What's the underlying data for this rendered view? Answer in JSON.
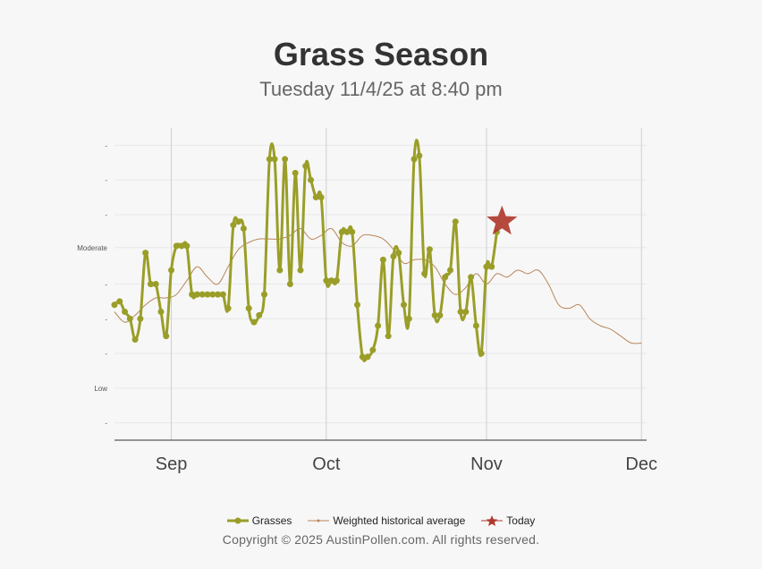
{
  "header": {
    "title": "Grass Season",
    "subtitle": "Tuesday 11/4/25 at 8:40 pm"
  },
  "footer": {
    "copyright": "Copyright © 2025 AustinPollen.com.  All rights reserved."
  },
  "colors": {
    "grasses": "#9a9e28",
    "historical": "#b8865a",
    "today": "#b03a2e",
    "grid": "#e8e8e8",
    "month_line": "#cfcfcf"
  },
  "chart_data": {
    "type": "line",
    "title": "Grass Season",
    "subtitle": "Tuesday 11/4/25 at 8:40 pm",
    "x_unit": "day",
    "x_start_date": "2025-08-20",
    "xlim": [
      0,
      103
    ],
    "ylim": [
      0,
      9
    ],
    "grid": true,
    "legend_position": "bottom",
    "x_ticks": [
      {
        "label": "Sep",
        "x": 11
      },
      {
        "label": "Oct",
        "x": 41
      },
      {
        "label": "Nov",
        "x": 72
      },
      {
        "label": "Dec",
        "x": 102
      }
    ],
    "y_ticks": [
      {
        "label": "-",
        "y": 8.5
      },
      {
        "label": "-",
        "y": 7.5
      },
      {
        "label": "-",
        "y": 6.5
      },
      {
        "label": "Moderate",
        "y": 5.55
      },
      {
        "label": "-",
        "y": 4.5
      },
      {
        "label": "-",
        "y": 3.5
      },
      {
        "label": "-",
        "y": 2.5
      },
      {
        "label": "Low",
        "y": 1.5
      },
      {
        "label": "-",
        "y": 0.5
      }
    ],
    "series": [
      {
        "name": "Grasses",
        "x": [
          0,
          1,
          2,
          3,
          4,
          5,
          6,
          7,
          8,
          9,
          10,
          11,
          12,
          13,
          14,
          15,
          16,
          17,
          18,
          19,
          20,
          21,
          22,
          23,
          24,
          25,
          26,
          27,
          28,
          29,
          30,
          31,
          32,
          33,
          34,
          35,
          36,
          37,
          38,
          39,
          40,
          41,
          42,
          43,
          44,
          45,
          46,
          47,
          48,
          49,
          50,
          51,
          52,
          53,
          54,
          55,
          56,
          57,
          58,
          59,
          60,
          61,
          62,
          63,
          64,
          65,
          66,
          67,
          68,
          69,
          70,
          71,
          72,
          73,
          74
        ],
        "y": [
          3.9,
          4.0,
          3.7,
          3.5,
          2.9,
          3.5,
          5.4,
          4.5,
          4.5,
          3.7,
          3.0,
          4.9,
          5.6,
          5.6,
          5.6,
          4.2,
          4.2,
          4.2,
          4.2,
          4.2,
          4.2,
          4.2,
          3.8,
          6.2,
          6.3,
          6.1,
          3.8,
          3.4,
          3.6,
          4.2,
          8.1,
          8.1,
          4.9,
          8.1,
          4.5,
          7.7,
          4.9,
          7.9,
          7.5,
          7.0,
          7.0,
          4.6,
          4.6,
          4.6,
          6.0,
          6.0,
          6.0,
          3.9,
          2.4,
          2.4,
          2.6,
          3.3,
          5.2,
          3.0,
          5.3,
          5.4,
          3.9,
          3.5,
          8.1,
          8.2,
          4.8,
          5.5,
          3.6,
          3.6,
          4.7,
          4.9,
          6.3,
          3.7,
          3.7,
          4.7,
          3.3,
          2.5,
          5.0,
          5.0,
          6.0
        ]
      },
      {
        "name": "Weighted historical average",
        "x": [
          0,
          2,
          4,
          6,
          8,
          10,
          12,
          14,
          16,
          18,
          20,
          22,
          24,
          26,
          28,
          30,
          32,
          34,
          36,
          38,
          40,
          42,
          44,
          46,
          48,
          50,
          52,
          54,
          56,
          58,
          60,
          62,
          64,
          66,
          68,
          70,
          72,
          74,
          76,
          78,
          80,
          82,
          84,
          86,
          88,
          90,
          92,
          94,
          96,
          98,
          100,
          102
        ],
        "y": [
          3.7,
          3.4,
          3.6,
          3.9,
          4.1,
          4.1,
          4.2,
          4.6,
          5.0,
          4.7,
          4.5,
          5.0,
          5.5,
          5.7,
          5.8,
          5.8,
          5.8,
          5.9,
          6.1,
          5.8,
          5.9,
          6.1,
          5.7,
          5.6,
          5.9,
          5.9,
          5.8,
          5.5,
          5.1,
          5.2,
          5.2,
          5.0,
          4.5,
          4.2,
          4.4,
          4.8,
          4.5,
          4.8,
          4.7,
          4.9,
          4.8,
          4.9,
          4.5,
          3.9,
          3.8,
          3.9,
          3.5,
          3.3,
          3.2,
          3.0,
          2.8,
          2.8
        ]
      },
      {
        "name": "Today",
        "x": [
          75
        ],
        "y": [
          6.3
        ]
      }
    ]
  }
}
